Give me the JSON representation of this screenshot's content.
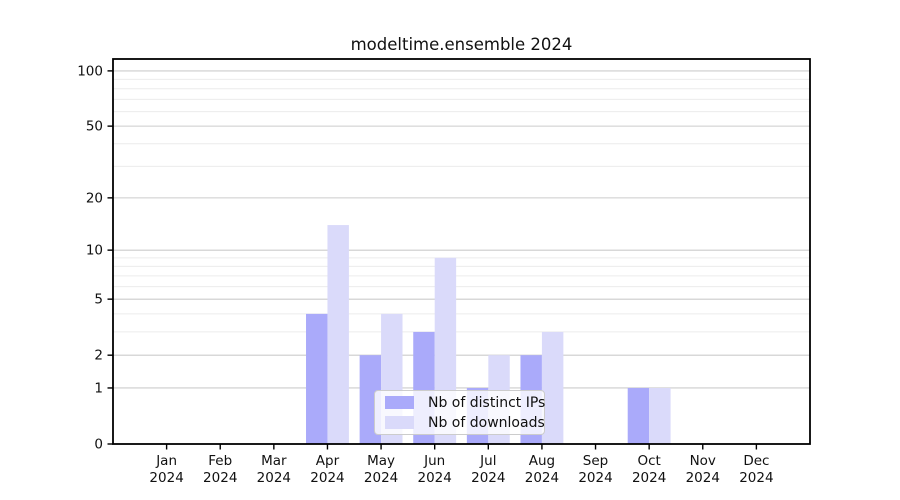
{
  "chart_data": {
    "type": "bar",
    "title": "modeltime.ensemble 2024",
    "categories": [
      "Jan",
      "Feb",
      "Mar",
      "Apr",
      "May",
      "Jun",
      "Jul",
      "Aug",
      "Sep",
      "Oct",
      "Nov",
      "Dec"
    ],
    "category_year": "2024",
    "series": [
      {
        "name": "Nb of distinct IPs",
        "color": "#aaaafa",
        "values": [
          0,
          0,
          0,
          4,
          2,
          3,
          1,
          2,
          0,
          1,
          0,
          0
        ]
      },
      {
        "name": "Nb of downloads",
        "color": "#dadafa",
        "values": [
          0,
          0,
          0,
          14,
          4,
          9,
          2,
          3,
          0,
          1,
          0,
          0
        ]
      }
    ],
    "yscale": "log1p",
    "ylim": [
      0,
      116
    ],
    "yticks_major": [
      0,
      1,
      2,
      5,
      10,
      20,
      50,
      100
    ],
    "ytick_labels": [
      "0",
      "1",
      "2",
      "5",
      "10",
      "20",
      "50",
      "100"
    ],
    "yticks_minor": [
      3,
      4,
      6,
      7,
      8,
      9,
      30,
      40,
      60,
      70,
      80,
      90
    ],
    "grid": true,
    "legend_position": "lower-center",
    "colors": {
      "grid_major": "#cccccc",
      "grid_minor": "#ececec",
      "spine": "#000000",
      "tick_text": "#111111",
      "background": "#ffffff"
    }
  }
}
